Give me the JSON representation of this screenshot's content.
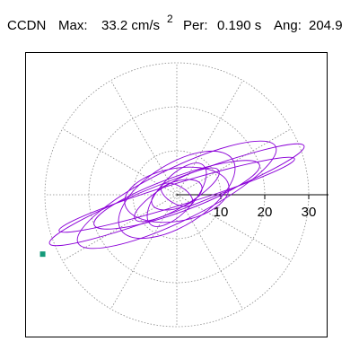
{
  "header": {
    "station": "CCDN",
    "max_label": "Max:",
    "max_value": "33.2 cm/s",
    "max_exp": "2",
    "per_label": "Per:",
    "per_value": "0.190 s",
    "ang_label": "Ang:",
    "ang_value": "204.9"
  },
  "colors": {
    "trace": "#8b00d8",
    "marker": "#159a7a",
    "grid": "#888888"
  },
  "chart_data": {
    "type": "scatter",
    "subtype": "polar particle-motion hodogram",
    "grid": true,
    "radial_ticks": [
      10,
      20,
      30
    ],
    "radial_tick_labels": [
      "10",
      "20",
      "30"
    ],
    "grid_rings": [
      10,
      20,
      30
    ],
    "spoke_angles_deg": [
      0,
      30,
      60,
      90,
      120,
      150,
      180,
      210,
      240,
      270,
      300,
      330
    ],
    "max_value": 33.2,
    "azimuth_deg": 204.9,
    "marker_point": {
      "x": -30.5,
      "y": -13.5
    },
    "orbits": [
      {
        "a": 31,
        "b": 3.5,
        "rot": 21
      },
      {
        "a": 28,
        "b": 2.5,
        "rot": 17
      },
      {
        "a": 25,
        "b": 6,
        "rot": 26
      },
      {
        "a": 20,
        "b": 4,
        "rot": 20
      },
      {
        "a": 15,
        "b": 7,
        "rot": 32
      },
      {
        "a": 12,
        "b": 6,
        "rot": 10
      },
      {
        "a": 9,
        "b": 4,
        "rot": 48
      },
      {
        "a": 6,
        "b": 3,
        "rot": 20
      },
      {
        "a": 4,
        "b": 2,
        "rot": -30
      },
      {
        "a": 11,
        "b": 3,
        "rot": 30
      }
    ]
  }
}
